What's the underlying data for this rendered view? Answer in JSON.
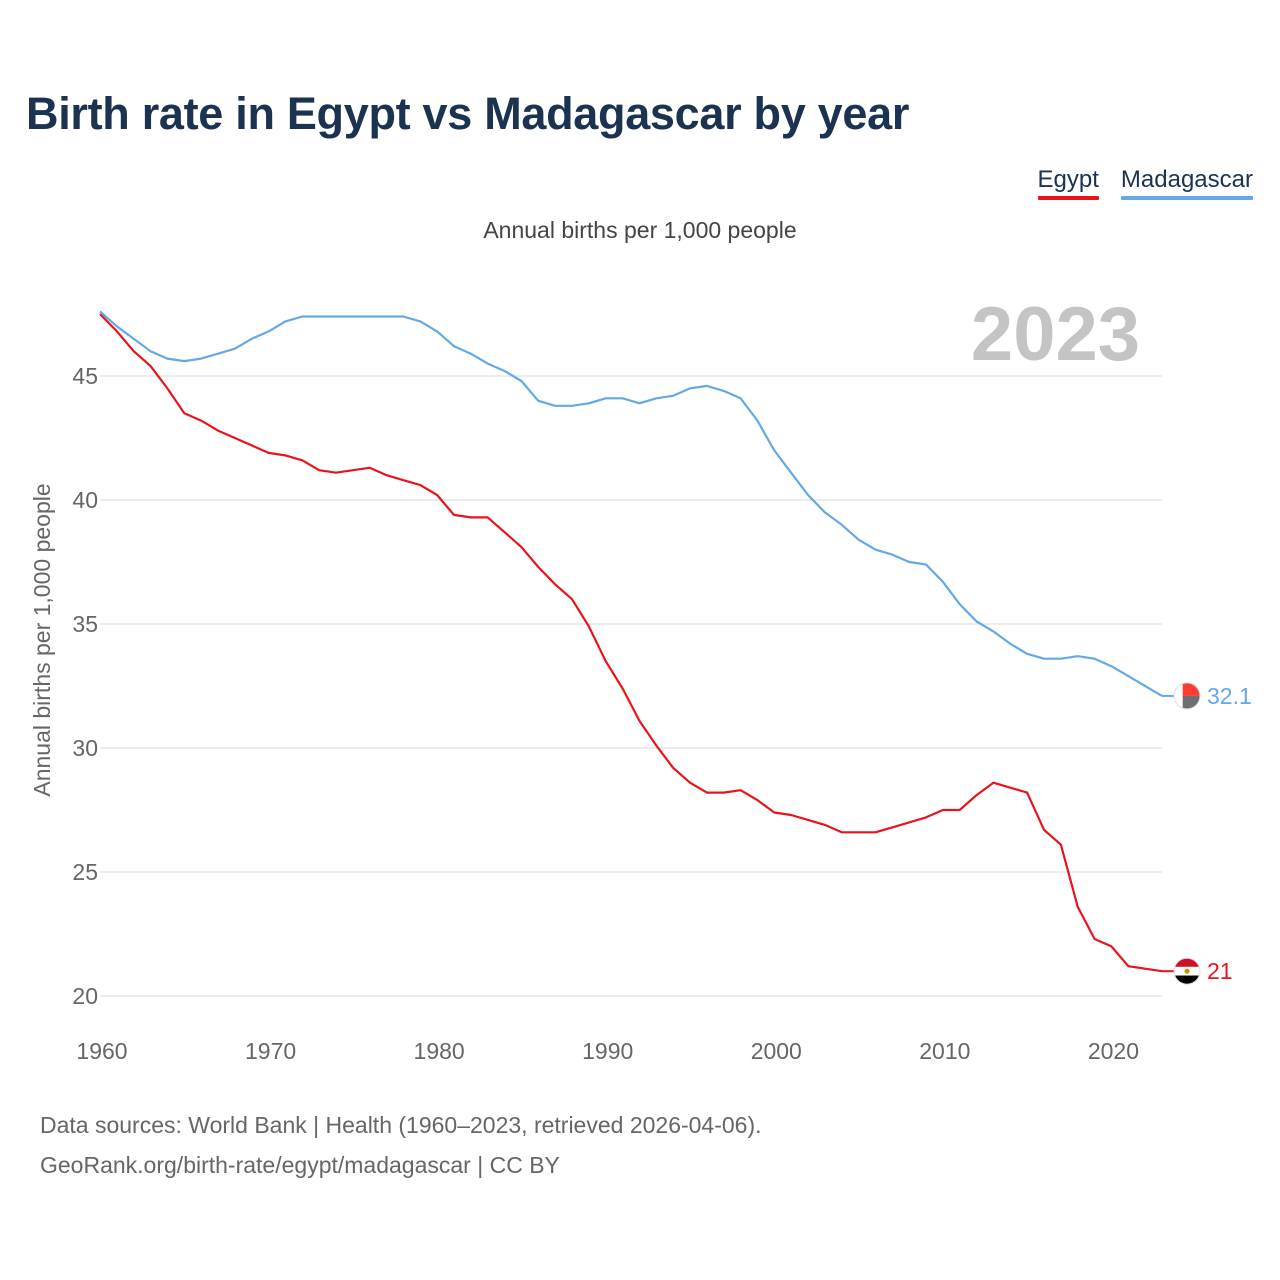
{
  "chart_data": {
    "type": "line",
    "title": "Birth rate in Egypt vs Madagascar by year",
    "subtitle": "Annual births per 1,000 people",
    "ylabel": "Annual births per 1,000 people",
    "xlabel": "",
    "year_label": "2023",
    "xlim": [
      1960,
      2023
    ],
    "ylim": [
      20,
      47
    ],
    "x_ticks": [
      1960,
      1970,
      1980,
      1990,
      2000,
      2010,
      2020
    ],
    "y_ticks": [
      20,
      25,
      30,
      35,
      40,
      45
    ],
    "grid": true,
    "legend_position": "top-right",
    "x": [
      1960,
      1961,
      1962,
      1963,
      1964,
      1965,
      1966,
      1967,
      1968,
      1969,
      1970,
      1971,
      1972,
      1973,
      1974,
      1975,
      1976,
      1977,
      1978,
      1979,
      1980,
      1981,
      1982,
      1983,
      1984,
      1985,
      1986,
      1987,
      1988,
      1989,
      1990,
      1991,
      1992,
      1993,
      1994,
      1995,
      1996,
      1997,
      1998,
      1999,
      2000,
      2001,
      2002,
      2003,
      2004,
      2005,
      2006,
      2007,
      2008,
      2009,
      2010,
      2011,
      2012,
      2013,
      2014,
      2015,
      2016,
      2017,
      2018,
      2019,
      2020,
      2021,
      2022,
      2023
    ],
    "series": [
      {
        "name": "Egypt",
        "color": "#e8141c",
        "end_label": "21",
        "flag_icon": "egypt-flag-icon",
        "values": [
          47.5,
          46.8,
          46.0,
          45.4,
          44.5,
          43.5,
          43.2,
          42.8,
          42.5,
          42.2,
          41.9,
          41.8,
          41.6,
          41.2,
          41.1,
          41.2,
          41.3,
          41.0,
          40.8,
          40.6,
          40.2,
          39.4,
          39.3,
          39.3,
          38.7,
          38.1,
          37.3,
          36.6,
          36.0,
          34.9,
          33.5,
          32.4,
          31.1,
          30.1,
          29.2,
          28.6,
          28.2,
          28.2,
          28.3,
          27.9,
          27.4,
          27.3,
          27.1,
          26.9,
          26.6,
          26.6,
          26.6,
          26.8,
          27.0,
          27.2,
          27.5,
          27.5,
          28.1,
          28.6,
          28.4,
          28.2,
          26.7,
          26.1,
          23.6,
          22.3,
          22.0,
          21.2,
          21.1,
          21.0
        ]
      },
      {
        "name": "Madagascar",
        "color": "#64a8e6",
        "end_label": "32.1",
        "flag_icon": "madagascar-flag-icon",
        "values": [
          47.6,
          47.0,
          46.5,
          46.0,
          45.7,
          45.6,
          45.7,
          45.9,
          46.1,
          46.5,
          46.8,
          47.2,
          47.4,
          47.4,
          47.4,
          47.4,
          47.4,
          47.4,
          47.4,
          47.2,
          46.8,
          46.2,
          45.9,
          45.5,
          45.2,
          44.8,
          44.0,
          43.8,
          43.8,
          43.9,
          44.1,
          44.1,
          43.9,
          44.1,
          44.2,
          44.5,
          44.6,
          44.4,
          44.1,
          43.2,
          42.0,
          41.1,
          40.2,
          39.5,
          39.0,
          38.4,
          38.0,
          37.8,
          37.5,
          37.4,
          36.7,
          35.8,
          35.1,
          34.7,
          34.2,
          33.8,
          33.6,
          33.6,
          33.7,
          33.6,
          33.3,
          32.9,
          32.5,
          32.1
        ]
      }
    ]
  },
  "footer": {
    "line1": "Data sources: World Bank | Health (1960–2023, retrieved 2026-04-06).",
    "line2": "GeoRank.org/birth-rate/egypt/madagascar | CC BY"
  }
}
